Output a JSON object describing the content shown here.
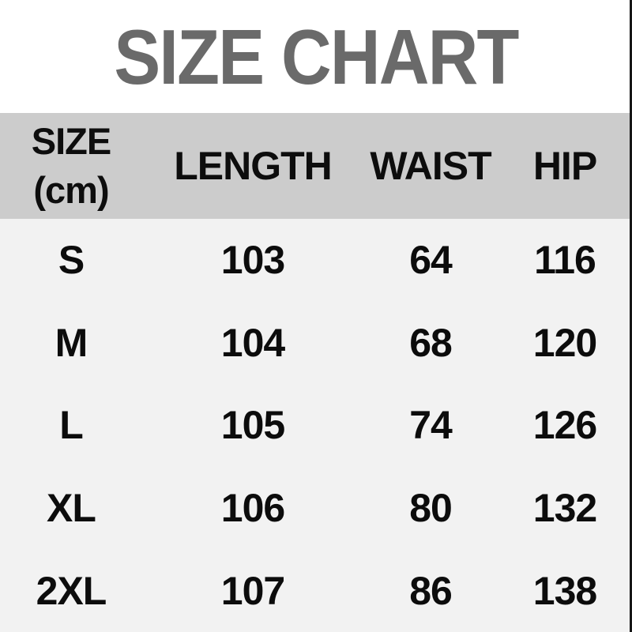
{
  "title": "SIZE CHART",
  "colors": {
    "title_text": "#6a6a6a",
    "header_bg": "#cccccc",
    "body_bg": "#f2f2f2",
    "cell_text": "#0c0c0c",
    "page_bg": "#ffffff",
    "right_edge_line": "#161616"
  },
  "table": {
    "header": {
      "size_line1": "SIZE",
      "size_line2": "(cm)",
      "length": "LENGTH",
      "waist": "WAIST",
      "hip": "HIP"
    }
  },
  "chart_data": {
    "type": "table",
    "title": "SIZE CHART",
    "unit": "cm",
    "columns": [
      "SIZE (cm)",
      "LENGTH",
      "WAIST",
      "HIP"
    ],
    "rows": [
      {
        "size": "S",
        "length": 103,
        "waist": 64,
        "hip": 116
      },
      {
        "size": "M",
        "length": 104,
        "waist": 68,
        "hip": 120
      },
      {
        "size": "L",
        "length": 105,
        "waist": 74,
        "hip": 126
      },
      {
        "size": "XL",
        "length": 106,
        "waist": 80,
        "hip": 132
      },
      {
        "size": "2XL",
        "length": 107,
        "waist": 86,
        "hip": 138
      }
    ]
  }
}
